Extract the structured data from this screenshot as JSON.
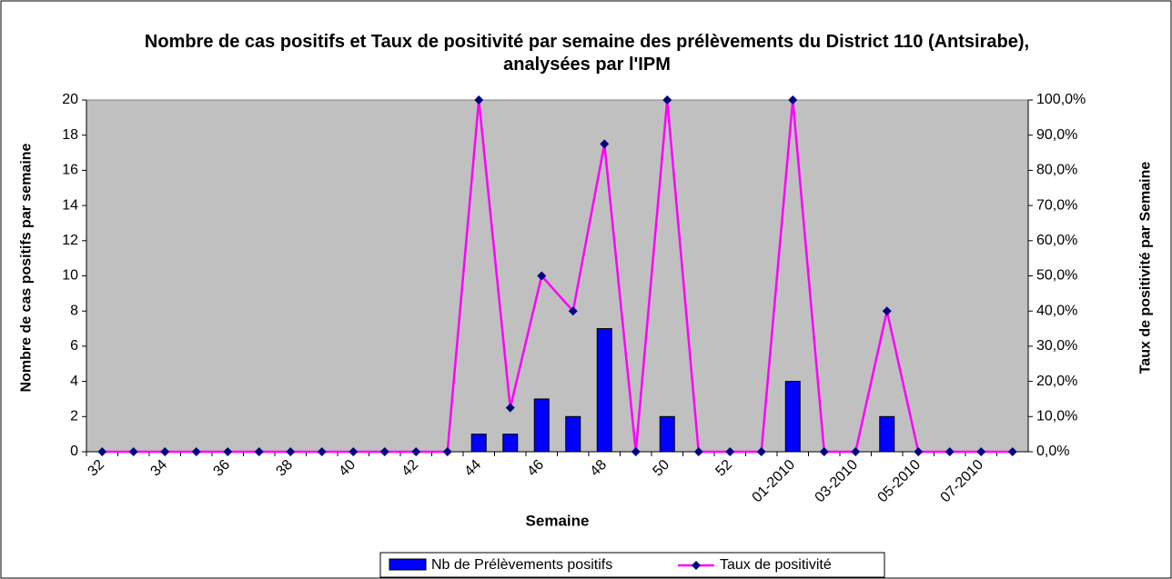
{
  "chart_data": {
    "type": "bar_line",
    "title": "Nombre de cas positifs et Taux de positivité par semaine des prélèvements du District 110 (Antsirabe), analysées par l'IPM",
    "xlabel": "Semaine",
    "ylabel": "Nombre de cas positifs par semaine",
    "y2label": "Taux de positivité par Semaine",
    "categories": [
      "32",
      null,
      "34",
      null,
      "36",
      null,
      "38",
      null,
      "40",
      null,
      "42",
      null,
      "44",
      null,
      "46",
      null,
      "48",
      null,
      "50",
      null,
      "52",
      null,
      "01-2010",
      null,
      "03-2010",
      null,
      "05-2010",
      null,
      "07-2010",
      null
    ],
    "series": [
      {
        "name": "Nb de Prélèvements positifs",
        "type": "bar",
        "color": "#0000ff",
        "values": [
          0,
          0,
          0,
          0,
          0,
          0,
          0,
          0,
          0,
          0,
          0,
          0,
          1,
          1,
          3,
          2,
          7,
          0,
          2,
          0,
          0,
          0,
          4,
          0,
          0,
          2,
          0,
          0,
          0,
          0
        ]
      },
      {
        "name": "Taux de positivité",
        "type": "line",
        "axis": "y2",
        "color": "#ff00ff",
        "marker_color": "#000080",
        "values": [
          0,
          0,
          0,
          0,
          0,
          0,
          0,
          0,
          0,
          0,
          0,
          0,
          100,
          12.5,
          50,
          40,
          87.5,
          0,
          100,
          0,
          0,
          0,
          100,
          0,
          0,
          40,
          0,
          0,
          0,
          0
        ]
      }
    ],
    "ylim": [
      0,
      20
    ],
    "yticks": [
      0,
      2,
      4,
      6,
      8,
      10,
      12,
      14,
      16,
      18,
      20
    ],
    "y2lim": [
      0,
      100
    ],
    "y2ticks": [
      {
        "value": 0,
        "label": "0,0%"
      },
      {
        "value": 10,
        "label": "10,0%"
      },
      {
        "value": 20,
        "label": "20,0%"
      },
      {
        "value": 30,
        "label": "30,0%"
      },
      {
        "value": 40,
        "label": "40,0%"
      },
      {
        "value": 50,
        "label": "50,0%"
      },
      {
        "value": 60,
        "label": "60,0%"
      },
      {
        "value": 70,
        "label": "70,0%"
      },
      {
        "value": 80,
        "label": "80,0%"
      },
      {
        "value": 90,
        "label": "90,0%"
      },
      {
        "value": 100,
        "label": "100,0%"
      }
    ],
    "plot_background": "#c0c0c0",
    "legend": "bottom"
  }
}
